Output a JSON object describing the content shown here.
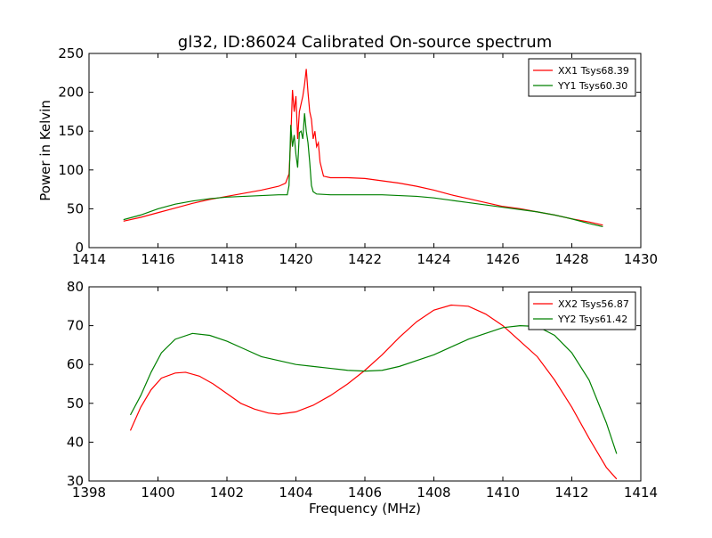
{
  "figure": {
    "title": "gl32, ID:86024 Calibrated On-source spectrum"
  },
  "chart_data": [
    {
      "type": "line",
      "title": "gl32, ID:86024 Calibrated On-source spectrum",
      "xlabel": "",
      "ylabel": "Power in Kelvin",
      "xlim": [
        1414,
        1430
      ],
      "ylim": [
        0,
        250
      ],
      "xticks": [
        1414,
        1416,
        1418,
        1420,
        1422,
        1424,
        1426,
        1428,
        1430
      ],
      "yticks": [
        0,
        50,
        100,
        150,
        200,
        250
      ],
      "legend_position": "top-right",
      "grid": false,
      "series": [
        {
          "name": "XX1 Tsys68.39",
          "color": "#ff0000",
          "points": [
            [
              1415.0,
              34
            ],
            [
              1415.5,
              39
            ],
            [
              1416.0,
              45
            ],
            [
              1416.5,
              51
            ],
            [
              1417.0,
              57
            ],
            [
              1417.5,
              62
            ],
            [
              1418.0,
              66
            ],
            [
              1418.5,
              70
            ],
            [
              1419.0,
              74
            ],
            [
              1419.5,
              79
            ],
            [
              1419.7,
              83
            ],
            [
              1419.8,
              95
            ],
            [
              1419.85,
              140
            ],
            [
              1419.9,
              203
            ],
            [
              1419.95,
              175
            ],
            [
              1420.0,
              195
            ],
            [
              1420.05,
              140
            ],
            [
              1420.1,
              175
            ],
            [
              1420.15,
              185
            ],
            [
              1420.2,
              195
            ],
            [
              1420.25,
              210
            ],
            [
              1420.3,
              230
            ],
            [
              1420.35,
              200
            ],
            [
              1420.4,
              175
            ],
            [
              1420.45,
              165
            ],
            [
              1420.5,
              140
            ],
            [
              1420.55,
              150
            ],
            [
              1420.6,
              130
            ],
            [
              1420.65,
              135
            ],
            [
              1420.7,
              110
            ],
            [
              1420.8,
              92
            ],
            [
              1421.0,
              90
            ],
            [
              1421.5,
              90
            ],
            [
              1422.0,
              89
            ],
            [
              1422.5,
              86
            ],
            [
              1423.0,
              83
            ],
            [
              1423.5,
              79
            ],
            [
              1424.0,
              74
            ],
            [
              1424.5,
              68
            ],
            [
              1425.0,
              63
            ],
            [
              1425.5,
              58
            ],
            [
              1426.0,
              53
            ],
            [
              1426.5,
              50
            ],
            [
              1427.0,
              46
            ],
            [
              1427.5,
              42
            ],
            [
              1428.0,
              37
            ],
            [
              1428.5,
              33
            ],
            [
              1428.9,
              29
            ]
          ]
        },
        {
          "name": "YY1 Tsys60.30",
          "color": "#008000",
          "points": [
            [
              1415.0,
              36
            ],
            [
              1415.5,
              42
            ],
            [
              1416.0,
              50
            ],
            [
              1416.5,
              56
            ],
            [
              1417.0,
              60
            ],
            [
              1417.5,
              63
            ],
            [
              1418.0,
              65
            ],
            [
              1418.5,
              66
            ],
            [
              1419.0,
              67
            ],
            [
              1419.5,
              68
            ],
            [
              1419.75,
              68
            ],
            [
              1419.8,
              80
            ],
            [
              1419.85,
              158
            ],
            [
              1419.9,
              130
            ],
            [
              1419.95,
              145
            ],
            [
              1420.0,
              120
            ],
            [
              1420.05,
              103
            ],
            [
              1420.1,
              148
            ],
            [
              1420.15,
              150
            ],
            [
              1420.2,
              140
            ],
            [
              1420.25,
              173
            ],
            [
              1420.3,
              150
            ],
            [
              1420.35,
              135
            ],
            [
              1420.4,
              110
            ],
            [
              1420.45,
              80
            ],
            [
              1420.5,
              72
            ],
            [
              1420.6,
              69
            ],
            [
              1421.0,
              68
            ],
            [
              1421.5,
              68
            ],
            [
              1422.0,
              68
            ],
            [
              1422.5,
              68
            ],
            [
              1423.0,
              67
            ],
            [
              1423.5,
              66
            ],
            [
              1424.0,
              64
            ],
            [
              1424.5,
              61
            ],
            [
              1425.0,
              58
            ],
            [
              1425.5,
              55
            ],
            [
              1426.0,
              52
            ],
            [
              1426.5,
              49
            ],
            [
              1427.0,
              46
            ],
            [
              1427.5,
              42
            ],
            [
              1428.0,
              37
            ],
            [
              1428.5,
              31
            ],
            [
              1428.9,
              27
            ]
          ]
        }
      ]
    },
    {
      "type": "line",
      "title": "",
      "xlabel": "Frequency (MHz)",
      "ylabel": "",
      "xlim": [
        1398,
        1414
      ],
      "ylim": [
        30,
        80
      ],
      "xticks": [
        1398,
        1400,
        1402,
        1404,
        1406,
        1408,
        1410,
        1412,
        1414
      ],
      "yticks": [
        30,
        40,
        50,
        60,
        70,
        80
      ],
      "legend_position": "top-right",
      "grid": false,
      "series": [
        {
          "name": "XX2 Tsys56.87",
          "color": "#ff0000",
          "points": [
            [
              1399.2,
              43
            ],
            [
              1399.5,
              49
            ],
            [
              1399.8,
              53.5
            ],
            [
              1400.1,
              56.5
            ],
            [
              1400.5,
              57.8
            ],
            [
              1400.8,
              58
            ],
            [
              1401.2,
              57
            ],
            [
              1401.6,
              55
            ],
            [
              1402.0,
              52.5
            ],
            [
              1402.4,
              50
            ],
            [
              1402.8,
              48.5
            ],
            [
              1403.2,
              47.5
            ],
            [
              1403.5,
              47.2
            ],
            [
              1404.0,
              47.8
            ],
            [
              1404.5,
              49.5
            ],
            [
              1405.0,
              52
            ],
            [
              1405.5,
              55
            ],
            [
              1406.0,
              58.5
            ],
            [
              1406.5,
              62.5
            ],
            [
              1407.0,
              67
            ],
            [
              1407.5,
              71
            ],
            [
              1408.0,
              74
            ],
            [
              1408.5,
              75.3
            ],
            [
              1409.0,
              75
            ],
            [
              1409.5,
              73
            ],
            [
              1410.0,
              70
            ],
            [
              1410.5,
              66
            ],
            [
              1411.0,
              62
            ],
            [
              1411.5,
              56
            ],
            [
              1412.0,
              49
            ],
            [
              1412.5,
              41
            ],
            [
              1413.0,
              33.5
            ],
            [
              1413.3,
              30.5
            ]
          ]
        },
        {
          "name": "YY2 Tsys61.42",
          "color": "#008000",
          "points": [
            [
              1399.2,
              47
            ],
            [
              1399.5,
              52
            ],
            [
              1399.8,
              58
            ],
            [
              1400.1,
              63
            ],
            [
              1400.5,
              66.5
            ],
            [
              1401.0,
              68
            ],
            [
              1401.5,
              67.5
            ],
            [
              1402.0,
              66
            ],
            [
              1402.5,
              64
            ],
            [
              1403.0,
              62
            ],
            [
              1403.5,
              61
            ],
            [
              1404.0,
              60
            ],
            [
              1404.5,
              59.5
            ],
            [
              1405.0,
              59
            ],
            [
              1405.5,
              58.5
            ],
            [
              1406.0,
              58.3
            ],
            [
              1406.5,
              58.5
            ],
            [
              1407.0,
              59.5
            ],
            [
              1407.5,
              61
            ],
            [
              1408.0,
              62.5
            ],
            [
              1408.5,
              64.5
            ],
            [
              1409.0,
              66.5
            ],
            [
              1409.5,
              68
            ],
            [
              1410.0,
              69.5
            ],
            [
              1410.5,
              70
            ],
            [
              1411.0,
              69.8
            ],
            [
              1411.5,
              67.5
            ],
            [
              1412.0,
              63
            ],
            [
              1412.5,
              56
            ],
            [
              1413.0,
              45
            ],
            [
              1413.3,
              37
            ]
          ]
        }
      ]
    }
  ]
}
